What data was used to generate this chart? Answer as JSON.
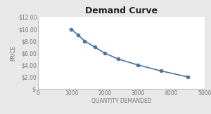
{
  "title": "Demand Curve",
  "xlabel": "QUANTITY DEMANDED",
  "ylabel": "PRICE",
  "x_data": [
    1000,
    1200,
    1400,
    1700,
    2000,
    2400,
    3000,
    3700,
    4500
  ],
  "y_data": [
    10.0,
    9.0,
    8.0,
    7.0,
    6.0,
    5.0,
    4.0,
    3.0,
    2.0
  ],
  "xlim": [
    0,
    5000
  ],
  "ylim": [
    0,
    12
  ],
  "xticks": [
    0,
    1000,
    2000,
    3000,
    4000,
    5000
  ],
  "yticks": [
    0,
    2,
    4,
    6,
    8,
    10,
    12
  ],
  "ytick_labels": [
    "$-",
    "$2.00",
    "$4.00",
    "$6.00",
    "$8.00",
    "$10.00",
    "$12.00"
  ],
  "line_color": "#4a72a4",
  "marker": "o",
  "marker_size": 3.5,
  "line_width": 1.2,
  "plot_bg_color": "#ffffff",
  "fig_bg_color": "#e8e8e8",
  "title_fontsize": 9,
  "axis_label_fontsize": 5.5,
  "tick_fontsize": 5.5,
  "spine_color": "#aaaaaa",
  "tick_color": "#777777",
  "title_color": "#222222",
  "label_color": "#777777"
}
